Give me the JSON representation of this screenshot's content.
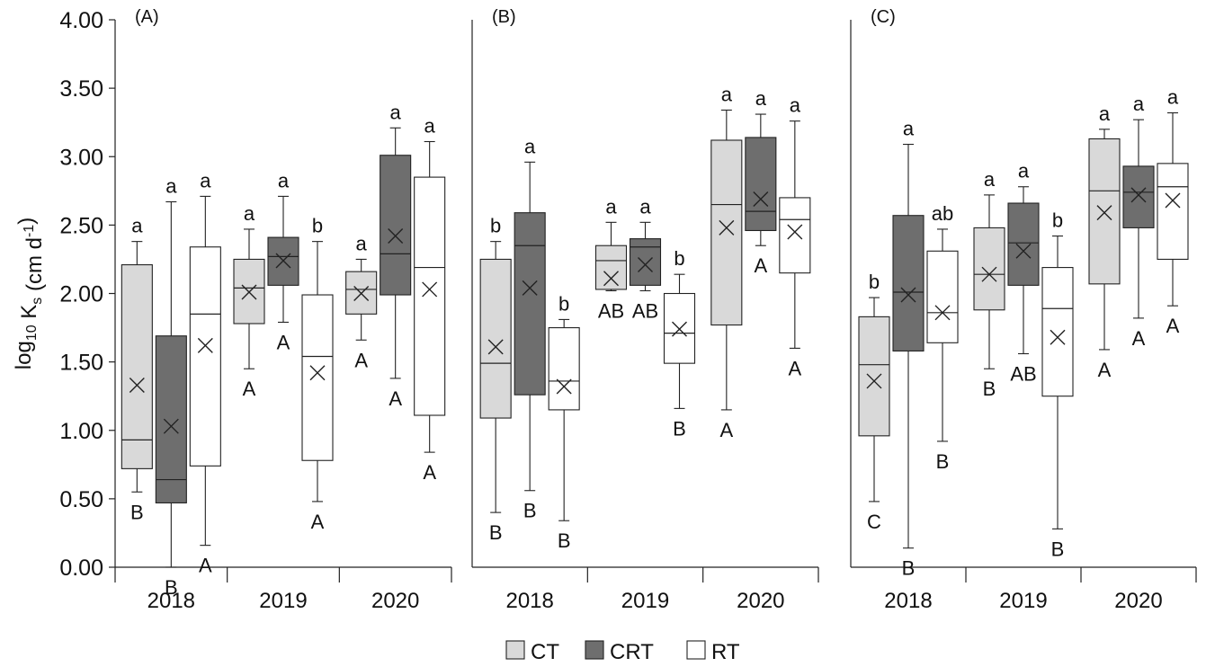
{
  "colors": {
    "CT": "#d9d9d9",
    "CRT": "#6e6e6e",
    "RT": "#ffffff",
    "stroke": "#222222"
  },
  "axis": {
    "ylabel_main": "log",
    "ylabel_sub": "10",
    "ylabel_rest": " K",
    "ylabel_s": "s",
    "ylabel_unit": " (cm d",
    "ylabel_sup": "-1",
    "ylabel_close": ")"
  },
  "legend": [
    {
      "key": "CT",
      "label": "CT"
    },
    {
      "key": "CRT",
      "label": "CRT"
    },
    {
      "key": "RT",
      "label": "RT"
    }
  ],
  "chart_data": {
    "type": "box",
    "ylim": [
      0,
      4
    ],
    "yticks": [
      "0.00",
      "0.50",
      "1.00",
      "1.50",
      "2.00",
      "2.50",
      "3.00",
      "3.50",
      "4.00"
    ],
    "years": [
      "2018",
      "2019",
      "2020"
    ],
    "treatments": [
      "CT",
      "CRT",
      "RT"
    ],
    "panels": [
      {
        "label": "(A)",
        "groups": [
          {
            "year": "2018",
            "boxes": [
              {
                "t": "CT",
                "min": 0.55,
                "q1": 0.72,
                "median": 0.93,
                "q3": 2.21,
                "max": 2.38,
                "mean": 1.33,
                "lower": "a",
                "upper": "B"
              },
              {
                "t": "CRT",
                "min": 0.0,
                "q1": 0.47,
                "median": 0.64,
                "q3": 1.69,
                "max": 2.67,
                "mean": 1.03,
                "lower": "a",
                "upper": "B"
              },
              {
                "t": "RT",
                "min": 0.16,
                "q1": 0.74,
                "median": 1.85,
                "q3": 2.34,
                "max": 2.71,
                "mean": 1.62,
                "lower": "a",
                "upper": "A"
              }
            ]
          },
          {
            "year": "2019",
            "boxes": [
              {
                "t": "CT",
                "min": 1.45,
                "q1": 1.78,
                "median": 2.04,
                "q3": 2.25,
                "max": 2.47,
                "mean": 2.01,
                "lower": "a",
                "upper": "A"
              },
              {
                "t": "CRT",
                "min": 1.79,
                "q1": 2.06,
                "median": 2.27,
                "q3": 2.41,
                "max": 2.71,
                "mean": 2.24,
                "lower": "a",
                "upper": "A"
              },
              {
                "t": "RT",
                "min": 0.48,
                "q1": 0.78,
                "median": 1.54,
                "q3": 1.99,
                "max": 2.38,
                "mean": 1.42,
                "lower": "b",
                "upper": "A"
              }
            ]
          },
          {
            "year": "2020",
            "boxes": [
              {
                "t": "CT",
                "min": 1.66,
                "q1": 1.85,
                "median": 2.03,
                "q3": 2.16,
                "max": 2.25,
                "mean": 2.0,
                "lower": "a",
                "upper": "A"
              },
              {
                "t": "CRT",
                "min": 1.38,
                "q1": 1.99,
                "median": 2.29,
                "q3": 3.01,
                "max": 3.21,
                "mean": 2.42,
                "lower": "a",
                "upper": "A"
              },
              {
                "t": "RT",
                "min": 0.84,
                "q1": 1.11,
                "median": 2.19,
                "q3": 2.85,
                "max": 3.11,
                "mean": 2.03,
                "lower": "a",
                "upper": "A"
              }
            ]
          }
        ]
      },
      {
        "label": "(B)",
        "groups": [
          {
            "year": "2018",
            "boxes": [
              {
                "t": "CT",
                "min": 0.4,
                "q1": 1.09,
                "median": 1.49,
                "q3": 2.25,
                "max": 2.38,
                "mean": 1.61,
                "lower": "b",
                "upper": "B"
              },
              {
                "t": "CRT",
                "min": 0.56,
                "q1": 1.26,
                "median": 2.35,
                "q3": 2.59,
                "max": 2.96,
                "mean": 2.04,
                "lower": "a",
                "upper": "B"
              },
              {
                "t": "RT",
                "min": 0.34,
                "q1": 1.15,
                "median": 1.36,
                "q3": 1.75,
                "max": 1.81,
                "mean": 1.32,
                "lower": "b",
                "upper": "B"
              }
            ]
          },
          {
            "year": "2019",
            "boxes": [
              {
                "t": "CT",
                "min": 2.02,
                "q1": 2.03,
                "median": 2.24,
                "q3": 2.35,
                "max": 2.52,
                "mean": 2.11,
                "lower": "a",
                "upper": "AB"
              },
              {
                "t": "CRT",
                "min": 2.02,
                "q1": 2.06,
                "median": 2.34,
                "q3": 2.4,
                "max": 2.52,
                "mean": 2.21,
                "lower": "a",
                "upper": "AB"
              },
              {
                "t": "RT",
                "min": 1.16,
                "q1": 1.49,
                "median": 1.71,
                "q3": 2.0,
                "max": 2.14,
                "mean": 1.74,
                "lower": "b",
                "upper": "B"
              }
            ]
          },
          {
            "year": "2020",
            "boxes": [
              {
                "t": "CT",
                "min": 1.15,
                "q1": 1.77,
                "median": 2.65,
                "q3": 3.12,
                "max": 3.34,
                "mean": 2.48,
                "lower": "a",
                "upper": "A"
              },
              {
                "t": "CRT",
                "min": 2.35,
                "q1": 2.46,
                "median": 2.6,
                "q3": 3.14,
                "max": 3.31,
                "mean": 2.69,
                "lower": "a",
                "upper": "A"
              },
              {
                "t": "RT",
                "min": 1.6,
                "q1": 2.15,
                "median": 2.54,
                "q3": 2.7,
                "max": 3.26,
                "mean": 2.45,
                "lower": "a",
                "upper": "A"
              }
            ]
          }
        ]
      },
      {
        "label": "(C)",
        "groups": [
          {
            "year": "2018",
            "boxes": [
              {
                "t": "CT",
                "min": 0.48,
                "q1": 0.96,
                "median": 1.48,
                "q3": 1.83,
                "max": 1.97,
                "mean": 1.36,
                "lower": "b",
                "upper": "C"
              },
              {
                "t": "CRT",
                "min": 0.14,
                "q1": 1.58,
                "median": 2.01,
                "q3": 2.57,
                "max": 3.09,
                "mean": 1.99,
                "lower": "a",
                "upper": "B"
              },
              {
                "t": "RT",
                "min": 0.92,
                "q1": 1.64,
                "median": 1.86,
                "q3": 2.31,
                "max": 2.47,
                "mean": 1.86,
                "lower": "ab",
                "upper": "B"
              }
            ]
          },
          {
            "year": "2019",
            "boxes": [
              {
                "t": "CT",
                "min": 1.45,
                "q1": 1.88,
                "median": 2.14,
                "q3": 2.48,
                "max": 2.72,
                "mean": 2.14,
                "lower": "a",
                "upper": "B"
              },
              {
                "t": "CRT",
                "min": 1.56,
                "q1": 2.06,
                "median": 2.37,
                "q3": 2.66,
                "max": 2.78,
                "mean": 2.31,
                "lower": "a",
                "upper": "AB"
              },
              {
                "t": "RT",
                "min": 0.28,
                "q1": 1.25,
                "median": 1.89,
                "q3": 2.19,
                "max": 2.42,
                "mean": 1.68,
                "lower": "b",
                "upper": "B"
              }
            ]
          },
          {
            "year": "2020",
            "boxes": [
              {
                "t": "CT",
                "min": 1.59,
                "q1": 2.07,
                "median": 2.75,
                "q3": 3.13,
                "max": 3.2,
                "mean": 2.59,
                "lower": "a",
                "upper": "A"
              },
              {
                "t": "CRT",
                "min": 1.82,
                "q1": 2.48,
                "median": 2.74,
                "q3": 2.93,
                "max": 3.27,
                "mean": 2.72,
                "lower": "a",
                "upper": "A"
              },
              {
                "t": "RT",
                "min": 1.91,
                "q1": 2.25,
                "median": 2.78,
                "q3": 2.95,
                "max": 3.32,
                "mean": 2.68,
                "lower": "a",
                "upper": "A"
              }
            ]
          }
        ]
      }
    ]
  }
}
